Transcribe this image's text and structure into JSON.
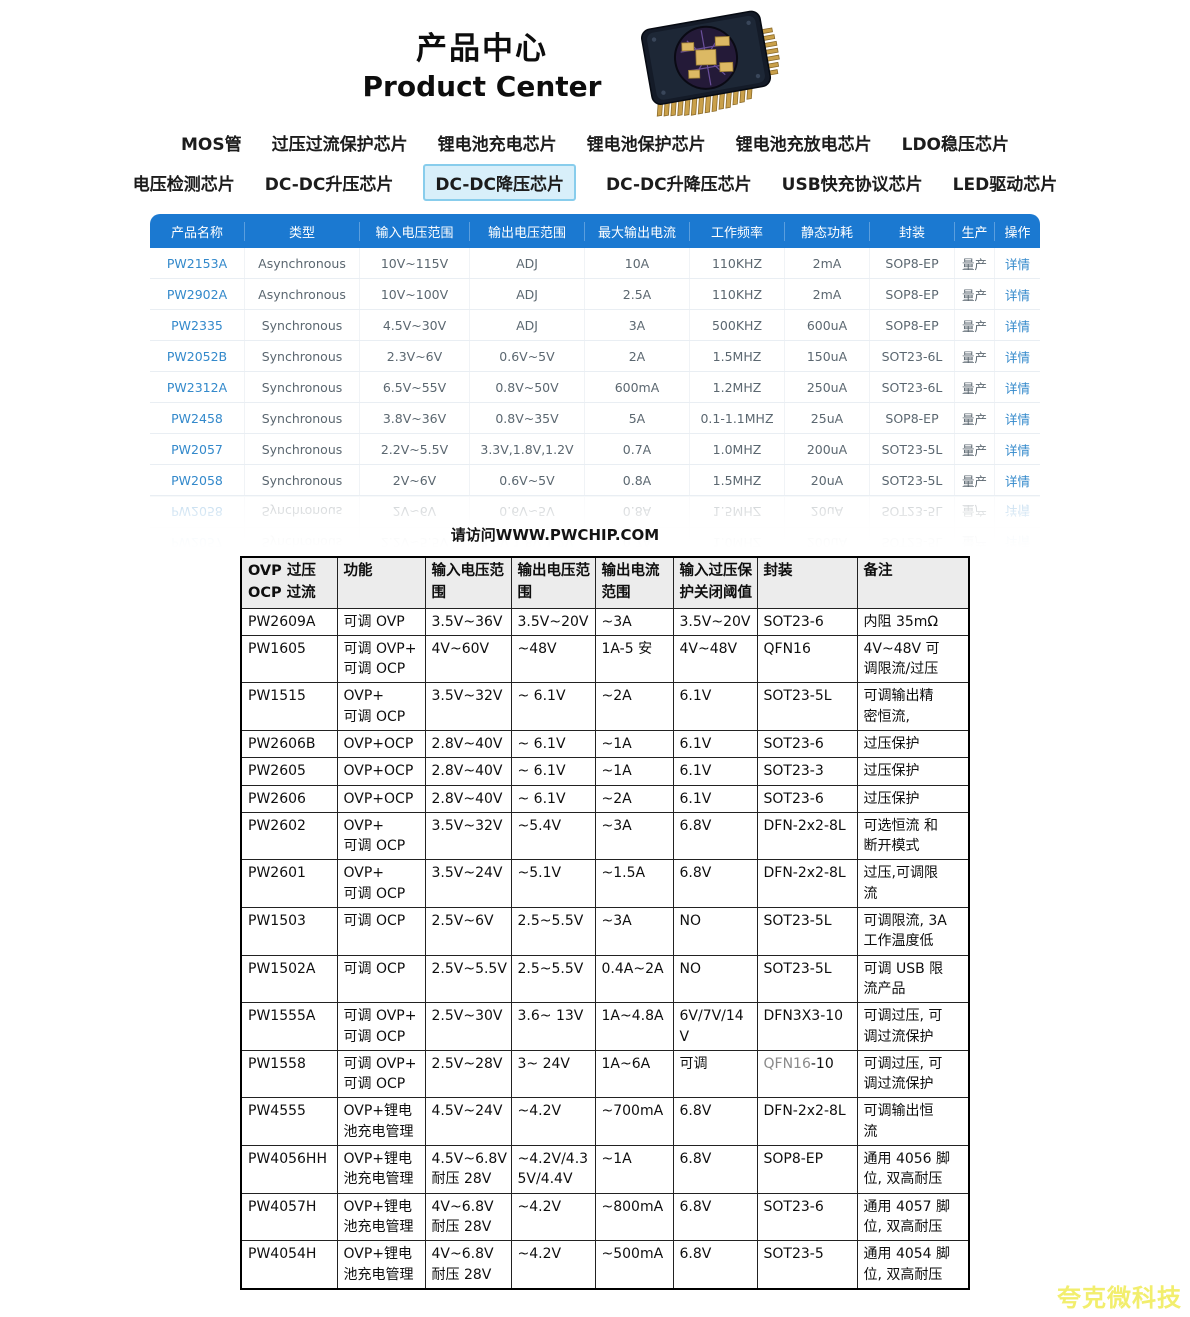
{
  "header": {
    "title_zh": "产品中心",
    "title_en": "Product Center",
    "chip_icon": "chip-3d-photo"
  },
  "nav": {
    "row1": [
      "MOS管",
      "过压过流保护芯片",
      "锂电池充电芯片",
      "锂电池保护芯片",
      "锂电池充放电芯片",
      "LDO稳压芯片"
    ],
    "row2": [
      "电压检测芯片",
      "DC-DC升压芯片",
      "DC-DC降压芯片",
      "DC-DC升降压芯片",
      "USB快充协议芯片",
      "LED驱动芯片"
    ],
    "active": "DC-DC降压芯片"
  },
  "product_table": {
    "headers": [
      "产品名称",
      "类型",
      "输入电压范围",
      "输出电压范围",
      "最大输出电流",
      "工作频率",
      "静态功耗",
      "封装",
      "生产",
      "操作"
    ],
    "rows": [
      [
        "PW2153A",
        "Asynchronous",
        "10V~115V",
        "ADJ",
        "10A",
        "110KHZ",
        "2mA",
        "SOP8-EP",
        "量产",
        "详情"
      ],
      [
        "PW2902A",
        "Asynchronous",
        "10V~100V",
        "ADJ",
        "2.5A",
        "110KHZ",
        "2mA",
        "SOP8-EP",
        "量产",
        "详情"
      ],
      [
        "PW2335",
        "Synchronous",
        "4.5V~30V",
        "ADJ",
        "3A",
        "500KHZ",
        "600uA",
        "SOP8-EP",
        "量产",
        "详情"
      ],
      [
        "PW2052B",
        "Synchronous",
        "2.3V~6V",
        "0.6V~5V",
        "2A",
        "1.5MHZ",
        "150uA",
        "SOT23-6L",
        "量产",
        "详情"
      ],
      [
        "PW2312A",
        "Synchronous",
        "6.5V~55V",
        "0.8V~50V",
        "600mA",
        "1.2MHZ",
        "250uA",
        "SOT23-6L",
        "量产",
        "详情"
      ],
      [
        "PW2458",
        "Synchronous",
        "3.8V~36V",
        "0.8V~35V",
        "5A",
        "0.1-1.1MHZ",
        "25uA",
        "SOP8-EP",
        "量产",
        "详情"
      ],
      [
        "PW2057",
        "Synchronous",
        "2.2V~5.5V",
        "3.3V,1.8V,1.2V",
        "0.7A",
        "1.0MHZ",
        "200uA",
        "SOT23-5L",
        "量产",
        "详情"
      ],
      [
        "PW2058",
        "Synchronous",
        "2V~6V",
        "0.6V~5V",
        "0.8A",
        "1.5MHZ",
        "20uA",
        "SOT23-5L",
        "量产",
        "详情"
      ]
    ]
  },
  "visit_note": "请访问WWW.PWCHIP.COM",
  "spec_table": {
    "headers": [
      "OVP 过压\nOCP 过流",
      "功能",
      "输入电压范\n围",
      "输出电压范\n围",
      "输出电流\n范围",
      "输入过压保\n护关闭阈值",
      "封装",
      "备注"
    ],
    "rows": [
      [
        "PW2609A",
        "可调 OVP",
        "3.5V~36V",
        "3.5V~20V",
        "~3A",
        "3.5V~20V",
        "SOT23-6",
        "内阻 35mΩ"
      ],
      [
        "PW1605",
        "可调 OVP+\n可调 OCP",
        "4V~60V",
        "~48V",
        "1A-5 安",
        "4V~48V",
        "QFN16",
        "4V~48V 可\n调限流/过压"
      ],
      [
        "PW1515",
        "OVP+\n可调 OCP",
        "3.5V~32V",
        "~ 6.1V",
        "~2A",
        "6.1V",
        "SOT23-5L",
        "可调输出精\n密恒流,"
      ],
      [
        "PW2606B",
        "OVP+OCP",
        "2.8V~40V",
        "~ 6.1V",
        "~1A",
        "6.1V",
        "SOT23-6",
        "过压保护"
      ],
      [
        "PW2605",
        "OVP+OCP",
        "2.8V~40V",
        "~ 6.1V",
        "~1A",
        "6.1V",
        "SOT23-3",
        "过压保护"
      ],
      [
        "PW2606",
        "OVP+OCP",
        "2.8V~40V",
        "~ 6.1V",
        "~2A",
        "6.1V",
        "SOT23-6",
        "过压保护"
      ],
      [
        "PW2602",
        "OVP+\n可调 OCP",
        "3.5V~32V",
        "~5.4V",
        "~3A",
        "6.8V",
        "DFN-2x2-8L",
        "可选恒流 和\n断开模式"
      ],
      [
        "PW2601",
        "OVP+\n可调 OCP",
        "3.5V~24V",
        "~5.1V",
        "~1.5A",
        "6.8V",
        "DFN-2x2-8L",
        "过压,可调限\n流"
      ],
      [
        "PW1503",
        "可调 OCP",
        "2.5V~6V",
        "2.5~5.5V",
        "~3A",
        "NO",
        "SOT23-5L",
        "可调限流, 3A\n工作温度低"
      ],
      [
        "PW1502A",
        "可调 OCP",
        "2.5V~5.5V",
        "2.5~5.5V",
        "0.4A~2A",
        "NO",
        "SOT23-5L",
        "可调 USB 限\n流产品"
      ],
      [
        "PW1555A",
        "可调 OVP+\n可调 OCP",
        "2.5V~30V",
        "3.6~ 13V",
        "1A~4.8A",
        "6V/7V/14\nV",
        "DFN3X3-10",
        "可调过压, 可\n调过流保护"
      ],
      [
        "PW1558",
        "可调 OVP+\n可调 OCP",
        "2.5V~28V",
        "3~ 24V",
        "1A~6A",
        "可调",
        {
          "spans": [
            {
              "text": "QFN16",
              "color": "#8a8a8a"
            },
            {
              "text": "-10"
            }
          ]
        },
        "可调过压, 可\n调过流保护"
      ],
      [
        "PW4555",
        "OVP+锂电\n池充电管理",
        "4.5V~24V",
        "~4.2V",
        "~700mA",
        "6.8V",
        "DFN-2x2-8L",
        "可调输出恒\n流"
      ],
      [
        "PW4056HH",
        "OVP+锂电\n池充电管理",
        "4.5V~6.8V\n耐压 28V",
        "~4.2V/4.3\n5V/4.4V",
        "~1A",
        "6.8V",
        "SOP8-EP",
        "通用 4056 脚\n位, 双高耐压"
      ],
      [
        "PW4057H",
        "OVP+锂电\n池充电管理",
        "4V~6.8V\n耐压 28V",
        "~4.2V",
        "~800mA",
        "6.8V",
        "SOT23-6",
        "通用 4057 脚\n位, 双高耐压"
      ],
      [
        "PW4054H",
        "OVP+锂电\n池充电管理",
        "4V~6.8V\n耐压 28V",
        "~4.2V",
        "~500mA",
        "6.8V",
        "SOT23-5",
        "通用 4054 脚\n位, 双高耐压"
      ]
    ]
  },
  "watermark": "夸克微科技",
  "colors": {
    "table_header_blue": "#1b79d1",
    "link_blue": "#3389cb",
    "nav_active_bg": "#d8effa",
    "nav_active_border": "#88cdec",
    "spec_header_bg": "#ececec",
    "qfn16_gray": "#8a8a8a",
    "watermark_yellow": "#f2ee6d"
  }
}
